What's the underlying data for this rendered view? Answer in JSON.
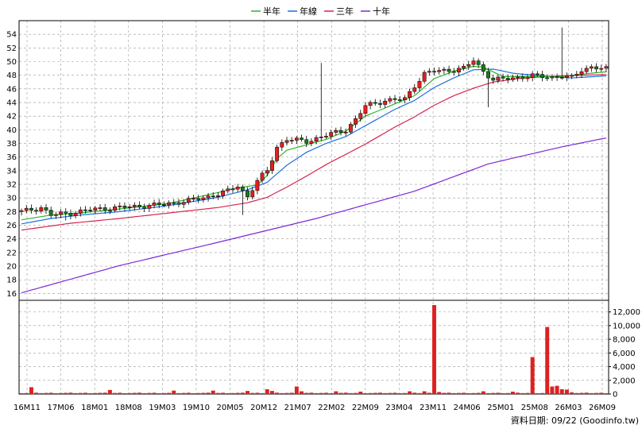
{
  "legend": [
    {
      "label": "半年",
      "color": "#2db32d"
    },
    {
      "label": "年線",
      "color": "#1f6fe0"
    },
    {
      "label": "三年",
      "color": "#d6254e"
    },
    {
      "label": "十年",
      "color": "#7a2ad6"
    }
  ],
  "footer": {
    "text": "資料日期: 09/22 (Goodinfo.tw)"
  },
  "colors": {
    "up": "#e02020",
    "down": "#1a7a1a",
    "grid": "#9a9a9a",
    "volume": "#e02020"
  },
  "chart_data": {
    "type": "candlestick",
    "x_ticks": [
      "16M11",
      "17M06",
      "18M01",
      "18M08",
      "19M03",
      "19M10",
      "20M05",
      "20M12",
      "21M07",
      "22M02",
      "22M09",
      "23M04",
      "23M11",
      "24M06",
      "25M01",
      "25M08",
      "26M03",
      "26M09"
    ],
    "price_axis": {
      "ylim": [
        15,
        56
      ],
      "ticks": [
        16,
        18,
        20,
        22,
        24,
        26,
        28,
        30,
        32,
        34,
        36,
        38,
        40,
        42,
        44,
        46,
        48,
        50,
        52,
        54
      ]
    },
    "volume_axis": {
      "ylim": [
        0,
        13000
      ],
      "ticks": [
        "0",
        "2,000",
        "4,000",
        "6,000",
        "8,000",
        "10,000",
        "12,000"
      ],
      "tick_values": [
        0,
        2000,
        4000,
        6000,
        8000,
        10000,
        12000
      ]
    },
    "month_count": 120,
    "close_path": [
      [
        0,
        28.0
      ],
      [
        4,
        28.6
      ],
      [
        6,
        27.5
      ],
      [
        10,
        27.8
      ],
      [
        14,
        28.3
      ],
      [
        20,
        28.6
      ],
      [
        24,
        28.8
      ],
      [
        28,
        29.0
      ],
      [
        34,
        29.6
      ],
      [
        38,
        30.2
      ],
      [
        42,
        31.0
      ],
      [
        44,
        31.8
      ],
      [
        46,
        30.2
      ],
      [
        48,
        32.5
      ],
      [
        50,
        34.0
      ],
      [
        52,
        37.5
      ],
      [
        54,
        38.6
      ],
      [
        58,
        38.3
      ],
      [
        62,
        39.2
      ],
      [
        66,
        40.0
      ],
      [
        68,
        41.5
      ],
      [
        70,
        43.5
      ],
      [
        74,
        44.3
      ],
      [
        78,
        44.5
      ],
      [
        80,
        46.5
      ],
      [
        82,
        48.2
      ],
      [
        84,
        48.6
      ],
      [
        88,
        48.8
      ],
      [
        90,
        49.0
      ],
      [
        92,
        50.2
      ],
      [
        94,
        48.6
      ],
      [
        96,
        47.3
      ],
      [
        100,
        47.6
      ],
      [
        104,
        47.9
      ],
      [
        108,
        47.7
      ],
      [
        110,
        47.9
      ],
      [
        112,
        47.6
      ],
      [
        114,
        48.8
      ],
      [
        116,
        49.2
      ],
      [
        119,
        48.9
      ]
    ],
    "spikes": {
      "9": 26.7,
      "45": 27.5,
      "61": 49.8,
      "95": 43.3,
      "110": 55.0
    },
    "ma_half_year": [
      [
        0,
        26.8
      ],
      [
        6,
        27.5
      ],
      [
        12,
        27.8
      ],
      [
        20,
        28.4
      ],
      [
        30,
        29.2
      ],
      [
        40,
        30.8
      ],
      [
        44,
        31.5
      ],
      [
        48,
        31.9
      ],
      [
        50,
        33.3
      ],
      [
        52,
        35.8
      ],
      [
        54,
        37.0
      ],
      [
        58,
        37.8
      ],
      [
        62,
        38.6
      ],
      [
        66,
        39.8
      ],
      [
        70,
        42.0
      ],
      [
        76,
        43.8
      ],
      [
        80,
        45.0
      ],
      [
        84,
        47.5
      ],
      [
        88,
        48.6
      ],
      [
        92,
        49.3
      ],
      [
        94,
        49.2
      ],
      [
        98,
        47.8
      ],
      [
        104,
        47.8
      ],
      [
        110,
        47.8
      ],
      [
        116,
        48.3
      ],
      [
        119,
        48.5
      ]
    ],
    "ma_year": [
      [
        0,
        26.2
      ],
      [
        6,
        27.0
      ],
      [
        12,
        27.5
      ],
      [
        20,
        28.0
      ],
      [
        30,
        28.9
      ],
      [
        40,
        30.1
      ],
      [
        46,
        31.2
      ],
      [
        50,
        32.3
      ],
      [
        54,
        34.8
      ],
      [
        58,
        36.7
      ],
      [
        62,
        38.0
      ],
      [
        66,
        39.0
      ],
      [
        70,
        40.6
      ],
      [
        76,
        43.0
      ],
      [
        80,
        44.3
      ],
      [
        84,
        46.2
      ],
      [
        88,
        47.6
      ],
      [
        92,
        48.8
      ],
      [
        96,
        48.9
      ],
      [
        100,
        48.3
      ],
      [
        106,
        47.9
      ],
      [
        112,
        47.6
      ],
      [
        119,
        47.9
      ]
    ],
    "ma_three_year": [
      [
        0,
        25.3
      ],
      [
        10,
        26.3
      ],
      [
        20,
        27.0
      ],
      [
        30,
        27.8
      ],
      [
        40,
        28.6
      ],
      [
        46,
        29.3
      ],
      [
        50,
        30.1
      ],
      [
        54,
        31.6
      ],
      [
        58,
        33.2
      ],
      [
        62,
        34.9
      ],
      [
        66,
        36.4
      ],
      [
        70,
        37.9
      ],
      [
        76,
        40.4
      ],
      [
        80,
        41.9
      ],
      [
        84,
        43.6
      ],
      [
        88,
        45.0
      ],
      [
        92,
        46.1
      ],
      [
        96,
        47.0
      ],
      [
        102,
        47.6
      ],
      [
        110,
        47.9
      ],
      [
        119,
        48.1
      ]
    ],
    "ma_ten_year": [
      [
        0,
        16.1
      ],
      [
        20,
        20.1
      ],
      [
        40,
        23.5
      ],
      [
        60,
        27.0
      ],
      [
        80,
        31.0
      ],
      [
        95,
        35.0
      ],
      [
        110,
        37.5
      ],
      [
        119,
        38.8
      ]
    ],
    "volume_base": 200,
    "volume_spikes": {
      "2": 1000,
      "18": 600,
      "31": 500,
      "39": 500,
      "46": 450,
      "50": 700,
      "51": 450,
      "56": 1100,
      "57": 400,
      "64": 400,
      "69": 350,
      "79": 400,
      "82": 400,
      "84": 13000,
      "85": 300,
      "94": 400,
      "100": 350,
      "104": 5400,
      "107": 9800,
      "108": 1100,
      "109": 1200,
      "110": 700,
      "111": 650,
      "112": 250
    }
  }
}
